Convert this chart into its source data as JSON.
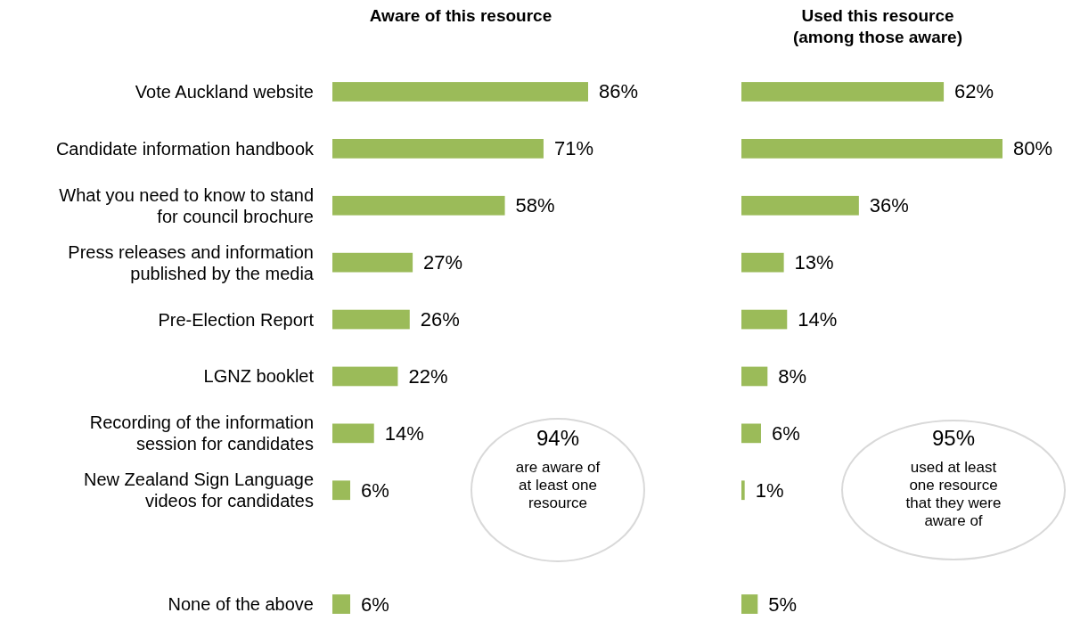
{
  "chart_data": [
    {
      "type": "bar",
      "orientation": "horizontal",
      "title": "Aware of this resource",
      "categories": [
        "Vote Auckland website",
        "Candidate information handbook",
        "What you need to know to stand for council brochure",
        "Press releases and information published by the media",
        "Pre-Election Report",
        "LGNZ booklet",
        "Recording of the information session for candidates",
        "New Zealand Sign Language videos for candidates",
        null,
        "None of the above"
      ],
      "series": [
        {
          "color": "#9bbb59",
          "values": [
            86,
            71,
            58,
            27,
            26,
            22,
            14,
            6,
            null,
            6
          ],
          "value_labels": [
            "86%",
            "71%",
            "58%",
            "27%",
            "26%",
            "22%",
            "14%",
            "6%",
            null,
            "6%"
          ]
        }
      ],
      "annotations": [
        "94%",
        "are aware of at least one resource"
      ]
    },
    {
      "type": "bar",
      "orientation": "horizontal",
      "title": "Used this resource (among those aware)",
      "categories": [
        null,
        null,
        null,
        null,
        null,
        null,
        null,
        null,
        null,
        null
      ],
      "series": [
        {
          "color": "#9bbb59",
          "values": [
            62,
            80,
            36,
            13,
            14,
            8,
            6,
            1,
            null,
            5
          ],
          "value_labels": [
            "62%",
            "80%",
            "36%",
            "13%",
            "14%",
            "8%",
            "6%",
            "1%",
            null,
            "5%"
          ]
        }
      ],
      "annotations": [
        "95%",
        "used at least one resource that they were aware of"
      ]
    }
  ]
}
